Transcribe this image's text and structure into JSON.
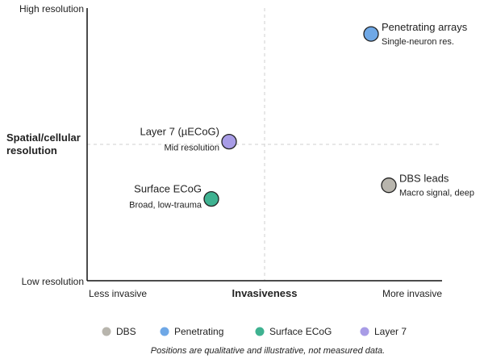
{
  "chart_data": {
    "type": "scatter",
    "title": "",
    "xlabel": "Invasiveness",
    "ylabel": "Spatial/cellular resolution",
    "x_scale": "qualitative",
    "y_scale": "qualitative",
    "xlim": [
      0,
      1
    ],
    "ylim": [
      0,
      1
    ],
    "x_tick_labels": [
      "Less invasive",
      "More invasive"
    ],
    "y_tick_labels": [
      "Low resolution",
      "High resolution"
    ],
    "grid": "dashed midlines at 0.5",
    "legend_position": "bottom",
    "points": [
      {
        "name": "Penetrating arrays",
        "desc": "Single-neuron res.",
        "x": 0.8,
        "y": 0.905,
        "color": "#6fa8e6",
        "label_side": "right-up"
      },
      {
        "name": "Layer 7 (µECoG)",
        "desc": "Mid resolution",
        "x": 0.4,
        "y": 0.51,
        "color": "#a89ce6",
        "label_side": "left"
      },
      {
        "name": "DBS leads",
        "desc": "Macro signal, deep",
        "x": 0.85,
        "y": 0.35,
        "color": "#b8b5ad",
        "label_side": "right-up"
      },
      {
        "name": "Surface ECoG",
        "desc": "Broad, low-trauma",
        "x": 0.35,
        "y": 0.3,
        "color": "#3fb291",
        "label_side": "left"
      }
    ],
    "legend": [
      {
        "name": "DBS",
        "color": "#b8b5ad"
      },
      {
        "name": "Penetrating",
        "color": "#6fa8e6"
      },
      {
        "name": "Surface ECoG",
        "color": "#3fb291"
      },
      {
        "name": "Layer 7",
        "color": "#a89ce6"
      }
    ],
    "footnote": "Positions are qualitative and illustrative, not measured data."
  }
}
